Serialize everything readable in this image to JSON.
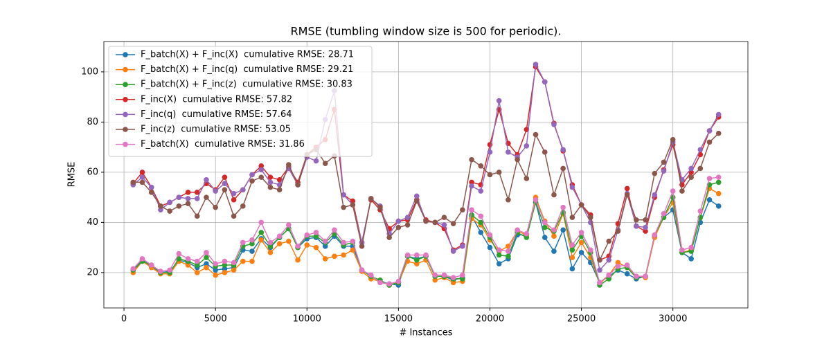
{
  "chart_data": {
    "type": "line",
    "title": "RMSE (tumbling window size is 500 for periodic).",
    "x_label": "# Instances",
    "y_label": "RMSE",
    "x": [
      500,
      1000,
      1500,
      2000,
      2500,
      3000,
      3500,
      4000,
      4500,
      5000,
      5500,
      6000,
      6500,
      7000,
      7500,
      8000,
      8500,
      9000,
      9500,
      10000,
      10500,
      11000,
      11500,
      12000,
      12500,
      13000,
      13500,
      14000,
      14500,
      15000,
      15500,
      16000,
      16500,
      17000,
      17500,
      18000,
      18500,
      19000,
      19500,
      20000,
      20500,
      21000,
      21500,
      22000,
      22500,
      23000,
      23500,
      24000,
      24500,
      25000,
      25500,
      26000,
      26500,
      27000,
      27500,
      28000,
      28500,
      29000,
      29500,
      30000,
      30500,
      31000,
      31500,
      32000,
      32500
    ],
    "series": [
      {
        "name": "F_batch(X) + F_inc(X)  cumulative RMSE: 28.71",
        "color": "#1f77b4",
        "values": [
          21,
          25,
          22.5,
          20,
          20.5,
          25,
          24,
          22,
          23.5,
          21,
          21.5,
          22,
          29,
          28.5,
          33.5,
          30,
          34,
          37.5,
          30,
          33.5,
          34,
          30.5,
          34.5,
          30.5,
          30.5,
          21,
          18.5,
          16.5,
          15.5,
          15,
          26.5,
          25.5,
          26.5,
          18.5,
          18.5,
          17,
          18,
          42.5,
          36,
          30,
          23.5,
          25.5,
          35,
          35,
          48,
          34,
          28.5,
          37,
          21.5,
          28,
          24,
          16,
          18.5,
          21,
          19.5,
          17.5,
          18.5,
          34.5,
          42,
          45,
          28,
          25.5,
          40,
          49,
          46.5
        ]
      },
      {
        "name": "F_batch(X) + F_inc(q)  cumulative RMSE: 29.21",
        "color": "#ff7f0e",
        "values": [
          20,
          24.5,
          22,
          19.5,
          19.5,
          24.5,
          23,
          20,
          22,
          19,
          20,
          21,
          24.5,
          24.5,
          33,
          28,
          31.5,
          32.5,
          25,
          31,
          30,
          25.5,
          26.5,
          27,
          29,
          20.5,
          17.5,
          16.5,
          15,
          16,
          24.5,
          23.5,
          25,
          17,
          18,
          16,
          16.5,
          41.5,
          39,
          33,
          28.5,
          30.5,
          36.5,
          35,
          50,
          40.5,
          34.5,
          43.5,
          26,
          32,
          26,
          15.5,
          19,
          24,
          22,
          18.5,
          18,
          34,
          42,
          48,
          28,
          29,
          42,
          53.5,
          51.5
        ]
      },
      {
        "name": "F_batch(X) + F_inc(z)  cumulative RMSE: 30.83",
        "color": "#2ca02c",
        "values": [
          21,
          24.5,
          23,
          20,
          20,
          25.5,
          24.5,
          23,
          26,
          22.5,
          23,
          23,
          30.5,
          31.5,
          36,
          30.5,
          34,
          37.5,
          30,
          34.5,
          34.5,
          32,
          35.5,
          31,
          32,
          21,
          18.5,
          17,
          15,
          16,
          26.5,
          25,
          26.5,
          18.5,
          18.5,
          17.5,
          17.5,
          43,
          40,
          34,
          27,
          26.5,
          36,
          34,
          48,
          38,
          36.5,
          44,
          29,
          34.5,
          28,
          15,
          17.5,
          21.5,
          22,
          18,
          18.5,
          35,
          42,
          50,
          28,
          28.5,
          42,
          55,
          56
        ]
      },
      {
        "name": "F_inc(X)  cumulative RMSE: 57.82",
        "color": "#d62728",
        "values": [
          55.5,
          60,
          54,
          46.5,
          48,
          50,
          52,
          52,
          55.5,
          53,
          58,
          49,
          53,
          59,
          62.5,
          58,
          57,
          62,
          56,
          67,
          70,
          73,
          85,
          51,
          48.5,
          32,
          49,
          45,
          37.5,
          40.5,
          41,
          49,
          41,
          40,
          37.5,
          29,
          31,
          56,
          55,
          71,
          85,
          71.5,
          67,
          77,
          102,
          96,
          79.5,
          68.5,
          55,
          47,
          43,
          25,
          26.5,
          39.5,
          53.5,
          38.5,
          36.5,
          50,
          61,
          71,
          55,
          60,
          67,
          76.5,
          82
        ]
      },
      {
        "name": "F_inc(q)  cumulative RMSE: 57.64",
        "color": "#9467bd",
        "values": [
          55,
          58,
          54,
          45,
          48,
          50,
          49.5,
          49.5,
          57,
          52.5,
          55.5,
          51.5,
          53,
          59,
          61,
          56,
          55,
          61.5,
          55,
          66,
          64.5,
          81,
          92.5,
          51,
          47,
          32,
          49.5,
          46.5,
          35.5,
          40.5,
          42,
          50.5,
          40.5,
          40,
          39,
          28.5,
          30.5,
          54.5,
          52.5,
          68,
          88.5,
          68,
          66,
          70.5,
          103,
          96,
          79,
          69,
          54,
          47,
          40,
          21,
          25,
          37,
          51.5,
          38.5,
          38,
          51,
          60.5,
          72,
          57,
          61.5,
          69,
          76.5,
          83
        ]
      },
      {
        "name": "F_inc(z)  cumulative RMSE: 53.05",
        "color": "#8c564b",
        "values": [
          56,
          56,
          52,
          46.5,
          44.5,
          46.5,
          47.5,
          42.5,
          50,
          46,
          53,
          42.5,
          46.5,
          56.5,
          58,
          54,
          53,
          63,
          55,
          67,
          69,
          63.5,
          66.5,
          46,
          47,
          30.5,
          49.5,
          46,
          34,
          38,
          39,
          48.5,
          40.5,
          40,
          42,
          39.5,
          45,
          65,
          62.5,
          59,
          60,
          49,
          65,
          57.5,
          75,
          68,
          51,
          61.5,
          42,
          47,
          42,
          25,
          32.5,
          36.5,
          51,
          41,
          41,
          59.5,
          64,
          73,
          52.5,
          58,
          61.5,
          72,
          75.5
        ]
      },
      {
        "name": "F_batch(X)  cumulative RMSE: 31.86",
        "color": "#e377c2",
        "values": [
          21.5,
          25.5,
          23,
          20.5,
          21,
          27.5,
          25.5,
          24.5,
          28,
          23.5,
          24.5,
          24,
          32,
          33,
          40,
          32,
          34.5,
          39,
          30.5,
          35,
          36,
          32.5,
          37,
          32,
          32.5,
          21,
          19,
          16,
          15.5,
          16.5,
          27,
          27,
          27,
          19,
          19,
          18,
          19,
          45,
          42.5,
          35,
          29,
          28.5,
          37,
          35.5,
          49,
          40,
          37,
          46,
          31,
          36,
          29,
          16,
          19,
          22.5,
          23,
          18.5,
          18.5,
          35,
          43.5,
          52.5,
          29,
          30,
          44.5,
          57.5,
          58
        ]
      }
    ],
    "xlim": [
      -1100,
      34100
    ],
    "xticks": [
      0,
      5000,
      10000,
      15000,
      20000,
      25000,
      30000
    ],
    "ylim": [
      5.9,
      112.1
    ],
    "yticks": [
      20,
      40,
      60,
      80,
      100
    ],
    "grid": true,
    "legend": "upper-left"
  }
}
